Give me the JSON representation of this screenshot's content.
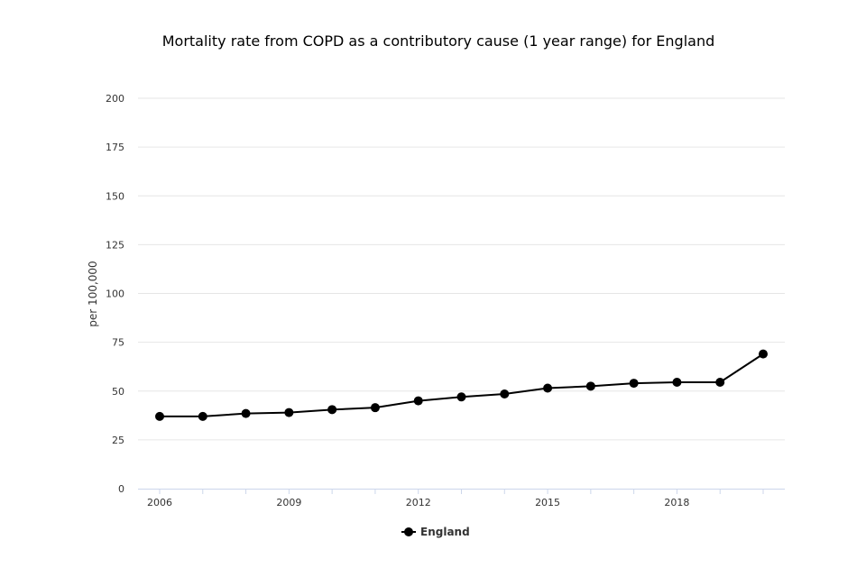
{
  "chart_data": {
    "type": "line",
    "title": "Mortality rate from COPD as a contributory cause (1 year range) for England",
    "xlabel": "",
    "ylabel": "per 100,000",
    "x": [
      2006,
      2007,
      2008,
      2009,
      2010,
      2011,
      2012,
      2013,
      2014,
      2015,
      2016,
      2017,
      2018,
      2019,
      2020
    ],
    "xtick_labels": [
      "2006",
      "2009",
      "2012",
      "2015",
      "2018"
    ],
    "xtick_values": [
      2006,
      2009,
      2012,
      2015,
      2018
    ],
    "ylim": [
      0,
      200
    ],
    "ytick_values": [
      0,
      25,
      50,
      75,
      100,
      125,
      150,
      175,
      200
    ],
    "ytick_labels": [
      "0",
      "25",
      "50",
      "75",
      "100",
      "125",
      "150",
      "175",
      "200"
    ],
    "grid": true,
    "legend_position": "bottom-center",
    "series": [
      {
        "name": "England",
        "color": "#000000",
        "values": [
          37.0,
          37.0,
          38.5,
          39.0,
          40.5,
          41.5,
          45.0,
          47.0,
          48.5,
          51.5,
          52.5,
          54.0,
          54.5,
          54.5,
          69.0
        ]
      }
    ]
  }
}
